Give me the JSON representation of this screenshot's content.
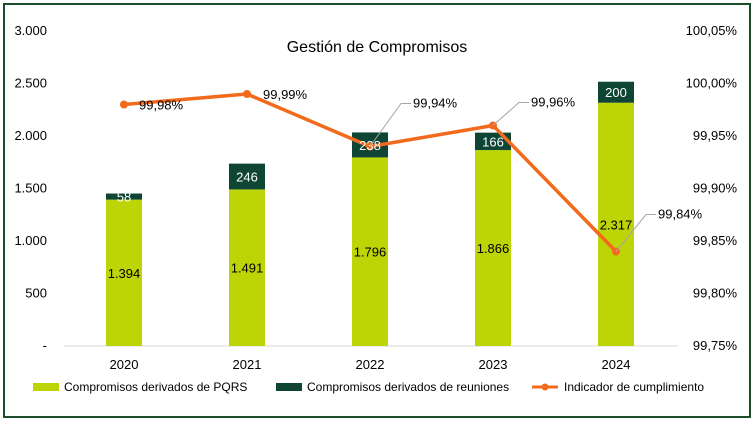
{
  "chart_data": {
    "type": "bar",
    "stacked": true,
    "title": "Gestión de Compromisos",
    "categories": [
      "2020",
      "2021",
      "2022",
      "2023",
      "2024"
    ],
    "series": [
      {
        "name": "Compromisos derivados de PQRS",
        "type": "bar",
        "axis": "left",
        "color": "#bdd406",
        "values": [
          1394,
          1491,
          1796,
          1866,
          2317
        ],
        "labels": [
          "1.394",
          "1.491",
          "1.796",
          "1.866",
          "2.317"
        ]
      },
      {
        "name": "Compromisos derivados de reuniones",
        "type": "bar",
        "axis": "left",
        "color": "#0f4535",
        "values": [
          58,
          246,
          238,
          166,
          200
        ],
        "labels": [
          "58",
          "246",
          "238",
          "166",
          "200"
        ]
      },
      {
        "name": "Indicador de cumplimiento",
        "type": "line",
        "axis": "right",
        "color": "#f26a1b",
        "values": [
          99.98,
          99.99,
          99.94,
          99.96,
          99.84
        ],
        "labels": [
          "99,98%",
          "99,99%",
          "99,94%",
          "99,96%",
          "99,84%"
        ]
      }
    ],
    "y_left": {
      "min": 0,
      "max": 3000,
      "ticks": [
        "-",
        "500",
        "1.000",
        "1.500",
        "2.000",
        "2.500",
        "3.000"
      ]
    },
    "y_right": {
      "min": 99.75,
      "max": 100.05,
      "ticks": [
        "99,75%",
        "99,80%",
        "99,85%",
        "99,90%",
        "99,95%",
        "100,00%",
        "100,05%"
      ]
    },
    "grid": false,
    "legend": "bottom"
  }
}
